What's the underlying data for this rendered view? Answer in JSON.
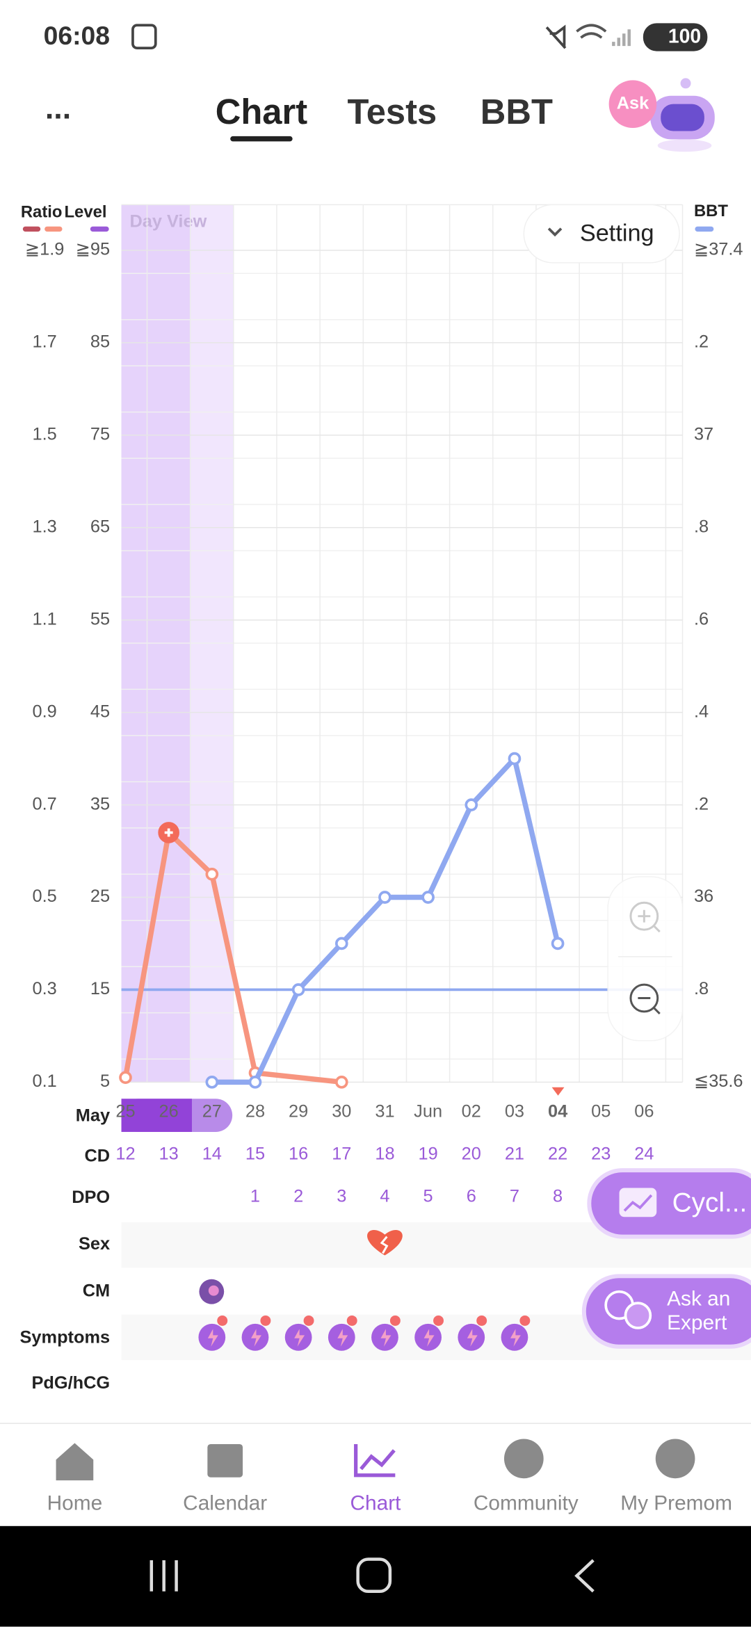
{
  "status_bar": {
    "time": "06:08",
    "battery": "100"
  },
  "header": {
    "more": "...",
    "tabs": [
      "Chart",
      "Tests",
      "BBT"
    ],
    "ask": "Ask"
  },
  "chart": {
    "view_label": "Day View",
    "setting": "Setting",
    "ratio_title": "Ratio",
    "level_title": "Level",
    "bbt_title": "BBT",
    "ratio_lim": [
      0.1,
      1.9
    ],
    "level_lim": [
      5,
      95
    ],
    "bbt_lim": [
      35.6,
      37.4
    ],
    "ratio_ticks": [
      {
        "value": 1.9,
        "label": "≧1.9"
      },
      1.7,
      1.5,
      1.3,
      1.1,
      0.9,
      0.7,
      0.5,
      0.3,
      0.1
    ],
    "level_ticks": [
      {
        "value": 95,
        "label": "≧95"
      },
      85,
      75,
      65,
      55,
      45,
      35,
      25,
      15,
      5
    ],
    "bbt_ticks": [
      {
        "value": 37.4,
        "label": "≧37.4"
      },
      {
        "value": 37.2,
        "label": ".2"
      },
      37,
      {
        "value": 36.8,
        "label": ".8"
      },
      {
        "value": 36.6,
        "label": ".6"
      },
      {
        "value": 36.4,
        "label": ".4"
      },
      {
        "value": 36.2,
        "label": ".2"
      },
      36,
      {
        "value": 35.8,
        "label": ".8"
      },
      {
        "value": 35.6,
        "label": "≦35.6"
      }
    ],
    "month": "May",
    "dates": [
      "25",
      "26",
      "27",
      "28",
      "29",
      "30",
      "31",
      "Jun",
      "02",
      "03",
      "04",
      "05",
      "06"
    ],
    "ratio_series": {
      "color": "#f7957f",
      "days": [
        "25",
        "26",
        "27",
        "28",
        "30"
      ],
      "values": [
        0.11,
        0.64,
        0.55,
        0.12,
        0.1
      ]
    },
    "bbt_series": {
      "color": "#8fa8f0",
      "days": [
        "27",
        "28",
        "29",
        "30",
        "31",
        "Jun",
        "02",
        "03",
        "04"
      ],
      "values": [
        35.6,
        35.6,
        35.8,
        35.9,
        36.0,
        36.0,
        36.2,
        36.3,
        35.9
      ]
    },
    "coverline": 35.8
  },
  "rows": {
    "labels": [
      "CD",
      "DPO",
      "Sex",
      "CM",
      "Symptoms",
      "PdG/hCG"
    ],
    "cd": [
      12,
      13,
      14,
      15,
      16,
      17,
      18,
      19,
      20,
      21,
      22,
      23,
      24
    ],
    "dpo": [
      null,
      null,
      null,
      1,
      2,
      3,
      4,
      5,
      6,
      7,
      8,
      null,
      null
    ]
  },
  "floating": {
    "cycle": "Cycl...",
    "ask_expert": [
      "Ask an",
      "Expert"
    ]
  },
  "nav": [
    "Home",
    "Calendar",
    "Chart",
    "Community",
    "My Premom"
  ]
}
